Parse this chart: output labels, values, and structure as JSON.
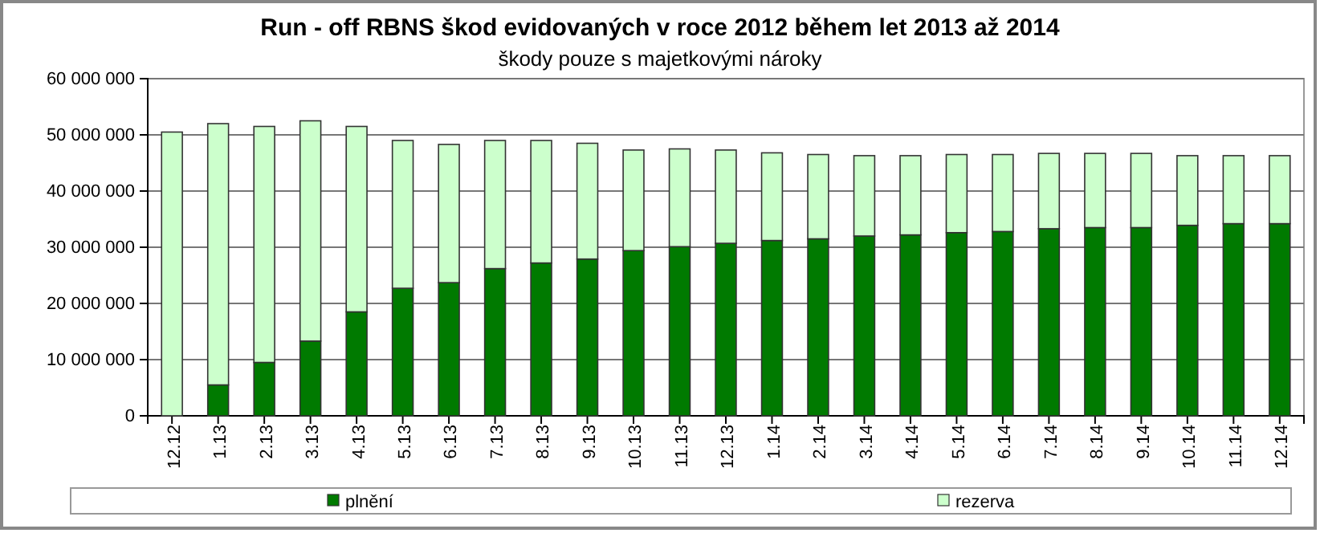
{
  "chart_data": {
    "type": "bar",
    "title": "Run - off RBNS škod evidovaných v roce 2012 během let 2013 až 2014",
    "subtitle": "škody pouze s majetkovými nároky",
    "categories": [
      "12.12",
      "1.13",
      "2.13",
      "3.13",
      "4.13",
      "5.13",
      "6.13",
      "7.13",
      "8.13",
      "9.13",
      "10.13",
      "11.13",
      "12.13",
      "1.14",
      "2.14",
      "3.14",
      "4.14",
      "5.14",
      "6.14",
      "7.14",
      "8.14",
      "9.14",
      "10.14",
      "11.14",
      "12.14"
    ],
    "series": [
      {
        "name": "plnění",
        "color": "#007a00",
        "values": [
          0,
          5500000,
          9500000,
          13300000,
          18500000,
          22700000,
          23700000,
          26200000,
          27200000,
          27900000,
          29400000,
          30100000,
          30700000,
          31200000,
          31500000,
          32000000,
          32200000,
          32600000,
          32800000,
          33300000,
          33500000,
          33500000,
          33900000,
          34200000,
          34200000
        ]
      },
      {
        "name": "rezerva",
        "color": "#ccffcc",
        "values": [
          50500000,
          46500000,
          42000000,
          39200000,
          33000000,
          26300000,
          24600000,
          22800000,
          21800000,
          20600000,
          17900000,
          17400000,
          16600000,
          15600000,
          15000000,
          14300000,
          14100000,
          13900000,
          13700000,
          13400000,
          13200000,
          13200000,
          12400000,
          12100000,
          12100000
        ]
      }
    ],
    "stacked": true,
    "ylim": [
      0,
      60000000
    ],
    "yticks": [
      0,
      {
        "value": 10000000,
        "label": "10 000 000"
      },
      {
        "value": 20000000,
        "label": "20 000 000"
      },
      {
        "value": 30000000,
        "label": "30 000 000"
      },
      {
        "value": 40000000,
        "label": "40 000 000"
      },
      {
        "value": 50000000,
        "label": "50 000 000"
      },
      {
        "value": 60000000,
        "label": "60 000 000"
      }
    ],
    "grid": "y",
    "legend": "bottom"
  }
}
